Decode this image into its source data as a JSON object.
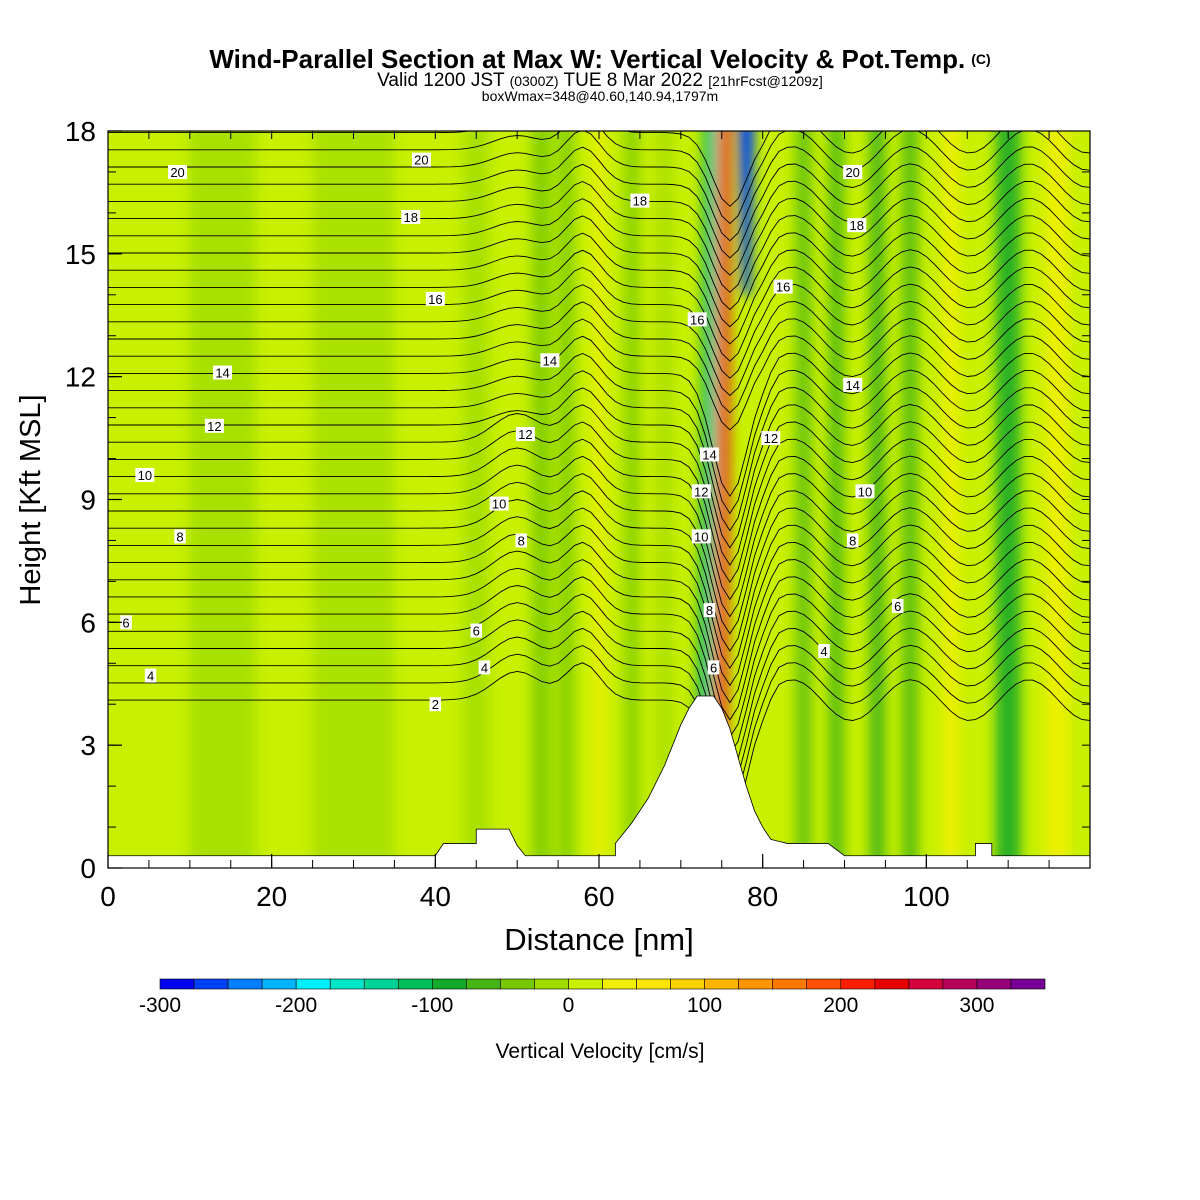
{
  "title": {
    "main": "Wind-Parallel Section at Max W: Vertical Velocity & Pot.Temp.",
    "main_mark": "(C)",
    "valid_prefix": "Valid 1200 JST",
    "valid_utc": "(0300Z)",
    "valid_date": "TUE 8 Mar 2022",
    "forecast": "[21hrFcst@1209z]",
    "box": "boxWmax=348@40.60,140.94,1797m"
  },
  "chart_data": {
    "type": "heatmap",
    "xlabel": "Distance [nm]",
    "ylabel": "Height [Kft MSL]",
    "xlim": [
      0,
      120
    ],
    "ylim": [
      0,
      18
    ],
    "xticks": [
      0,
      20,
      40,
      60,
      80,
      100
    ],
    "yticks": [
      0,
      3,
      6,
      9,
      12,
      15,
      18
    ],
    "colorbar": {
      "label": "Vertical Velocity [cm/s]",
      "range": [
        -300,
        350
      ],
      "step": 25,
      "tick_values": [
        -300,
        -200,
        -100,
        0,
        100,
        200,
        300
      ],
      "colors": [
        "#0000f0",
        "#0040f5",
        "#0080ff",
        "#00b4ff",
        "#00f0ff",
        "#00e6c8",
        "#00d296",
        "#00be5a",
        "#14aa28",
        "#46b414",
        "#78c800",
        "#a0dc00",
        "#c8f000",
        "#f0f000",
        "#ffe600",
        "#ffd200",
        "#ffb400",
        "#ff9600",
        "#ff7800",
        "#ff5000",
        "#ff1e00",
        "#e60000",
        "#d2003c",
        "#b4005a",
        "#960078",
        "#780096"
      ]
    },
    "terrain": [
      [
        0,
        0.3
      ],
      [
        34,
        0.3
      ],
      [
        40,
        0.3
      ],
      [
        41,
        0.6
      ],
      [
        45,
        0.6
      ],
      [
        45,
        0.95
      ],
      [
        49,
        0.95
      ],
      [
        50,
        0.55
      ],
      [
        51,
        0.3
      ],
      [
        62,
        0.3
      ],
      [
        62,
        0.6
      ],
      [
        63,
        0.85
      ],
      [
        64,
        1.1
      ],
      [
        65,
        1.4
      ],
      [
        66,
        1.7
      ],
      [
        67,
        2.1
      ],
      [
        68,
        2.5
      ],
      [
        69,
        3.0
      ],
      [
        70,
        3.5
      ],
      [
        71,
        3.9
      ],
      [
        72,
        4.2
      ],
      [
        74,
        4.2
      ],
      [
        75,
        3.9
      ],
      [
        76,
        3.4
      ],
      [
        77,
        2.7
      ],
      [
        78,
        2.0
      ],
      [
        79,
        1.4
      ],
      [
        80,
        1.0
      ],
      [
        81,
        0.7
      ],
      [
        83,
        0.6
      ],
      [
        88,
        0.6
      ],
      [
        90,
        0.3
      ],
      [
        106,
        0.3
      ],
      [
        106,
        0.6
      ],
      [
        108,
        0.6
      ],
      [
        108,
        0.3
      ],
      [
        120,
        0.3
      ]
    ],
    "theta_contour_labels": [
      {
        "text": "20",
        "x": 8.5,
        "y": 17.0
      },
      {
        "text": "20",
        "x": 38.3,
        "y": 17.3
      },
      {
        "text": "18",
        "x": 37.0,
        "y": 15.9
      },
      {
        "text": "18",
        "x": 65.0,
        "y": 16.3
      },
      {
        "text": "20",
        "x": 91.0,
        "y": 17.0
      },
      {
        "text": "18",
        "x": 91.5,
        "y": 15.7
      },
      {
        "text": "16",
        "x": 40.0,
        "y": 13.9
      },
      {
        "text": "16",
        "x": 72.0,
        "y": 13.4
      },
      {
        "text": "16",
        "x": 82.5,
        "y": 14.2
      },
      {
        "text": "14",
        "x": 14.0,
        "y": 12.1
      },
      {
        "text": "14",
        "x": 54.0,
        "y": 12.4
      },
      {
        "text": "14",
        "x": 91.0,
        "y": 11.8
      },
      {
        "text": "12",
        "x": 13.0,
        "y": 10.8
      },
      {
        "text": "12",
        "x": 51.0,
        "y": 10.6
      },
      {
        "text": "12",
        "x": 81.0,
        "y": 10.5
      },
      {
        "text": "10",
        "x": 4.5,
        "y": 9.6
      },
      {
        "text": "10",
        "x": 47.8,
        "y": 8.9
      },
      {
        "text": "14",
        "x": 73.5,
        "y": 10.1
      },
      {
        "text": "12",
        "x": 72.5,
        "y": 9.2
      },
      {
        "text": "10",
        "x": 72.5,
        "y": 8.1
      },
      {
        "text": "10",
        "x": 92.5,
        "y": 9.2
      },
      {
        "text": "8",
        "x": 8.8,
        "y": 8.1
      },
      {
        "text": "8",
        "x": 50.5,
        "y": 8.0
      },
      {
        "text": "8",
        "x": 91.0,
        "y": 8.0
      },
      {
        "text": "8",
        "x": 73.5,
        "y": 6.3
      },
      {
        "text": "6",
        "x": 2.2,
        "y": 6.0
      },
      {
        "text": "6",
        "x": 45.0,
        "y": 5.8
      },
      {
        "text": "6",
        "x": 96.5,
        "y": 6.4
      },
      {
        "text": "6",
        "x": 74.0,
        "y": 4.9
      },
      {
        "text": "4",
        "x": 5.2,
        "y": 4.7
      },
      {
        "text": "4",
        "x": 46.0,
        "y": 4.9
      },
      {
        "text": "4",
        "x": 87.5,
        "y": 5.3
      },
      {
        "text": "2",
        "x": 40.0,
        "y": 4.0
      }
    ]
  }
}
